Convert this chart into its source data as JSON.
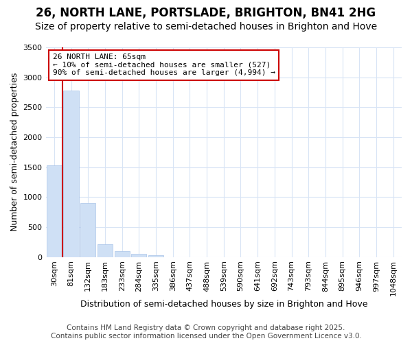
{
  "title1": "26, NORTH LANE, PORTSLADE, BRIGHTON, BN41 2HG",
  "title2": "Size of property relative to semi-detached houses in Brighton and Hove",
  "xlabel": "Distribution of semi-detached houses by size in Brighton and Hove",
  "ylabel": "Number of semi-detached properties",
  "annotation_title": "26 NORTH LANE: 65sqm",
  "annotation_line1": "← 10% of semi-detached houses are smaller (527)",
  "annotation_line2": "90% of semi-detached houses are larger (4,994) →",
  "footer1": "Contains HM Land Registry data © Crown copyright and database right 2025.",
  "footer2": "Contains public sector information licensed under the Open Government Licence v3.0.",
  "bar_labels": [
    "30sqm",
    "81sqm",
    "132sqm",
    "183sqm",
    "233sqm",
    "284sqm",
    "335sqm",
    "386sqm",
    "437sqm",
    "488sqm",
    "539sqm",
    "590sqm",
    "641sqm",
    "692sqm",
    "743sqm",
    "793sqm",
    "844sqm",
    "895sqm",
    "946sqm",
    "997sqm",
    "1048sqm"
  ],
  "bar_values": [
    1530,
    2780,
    900,
    215,
    100,
    50,
    28,
    0,
    0,
    0,
    0,
    0,
    0,
    0,
    0,
    0,
    0,
    0,
    0,
    0,
    0
  ],
  "bar_color": "#cfe0f5",
  "bar_edge_color": "#aac4e8",
  "marker_color": "#cc0000",
  "ylim": [
    0,
    3500
  ],
  "yticks": [
    0,
    500,
    1000,
    1500,
    2000,
    2500,
    3000,
    3500
  ],
  "bg_color": "#ffffff",
  "plot_bg_color": "#ffffff",
  "grid_color": "#d8e4f5",
  "annotation_box_color": "#ffffff",
  "annotation_box_edge": "#cc0000",
  "title1_fontsize": 12,
  "title2_fontsize": 10,
  "axis_label_fontsize": 9,
  "tick_fontsize": 8,
  "annotation_fontsize": 8,
  "footer_fontsize": 7.5
}
